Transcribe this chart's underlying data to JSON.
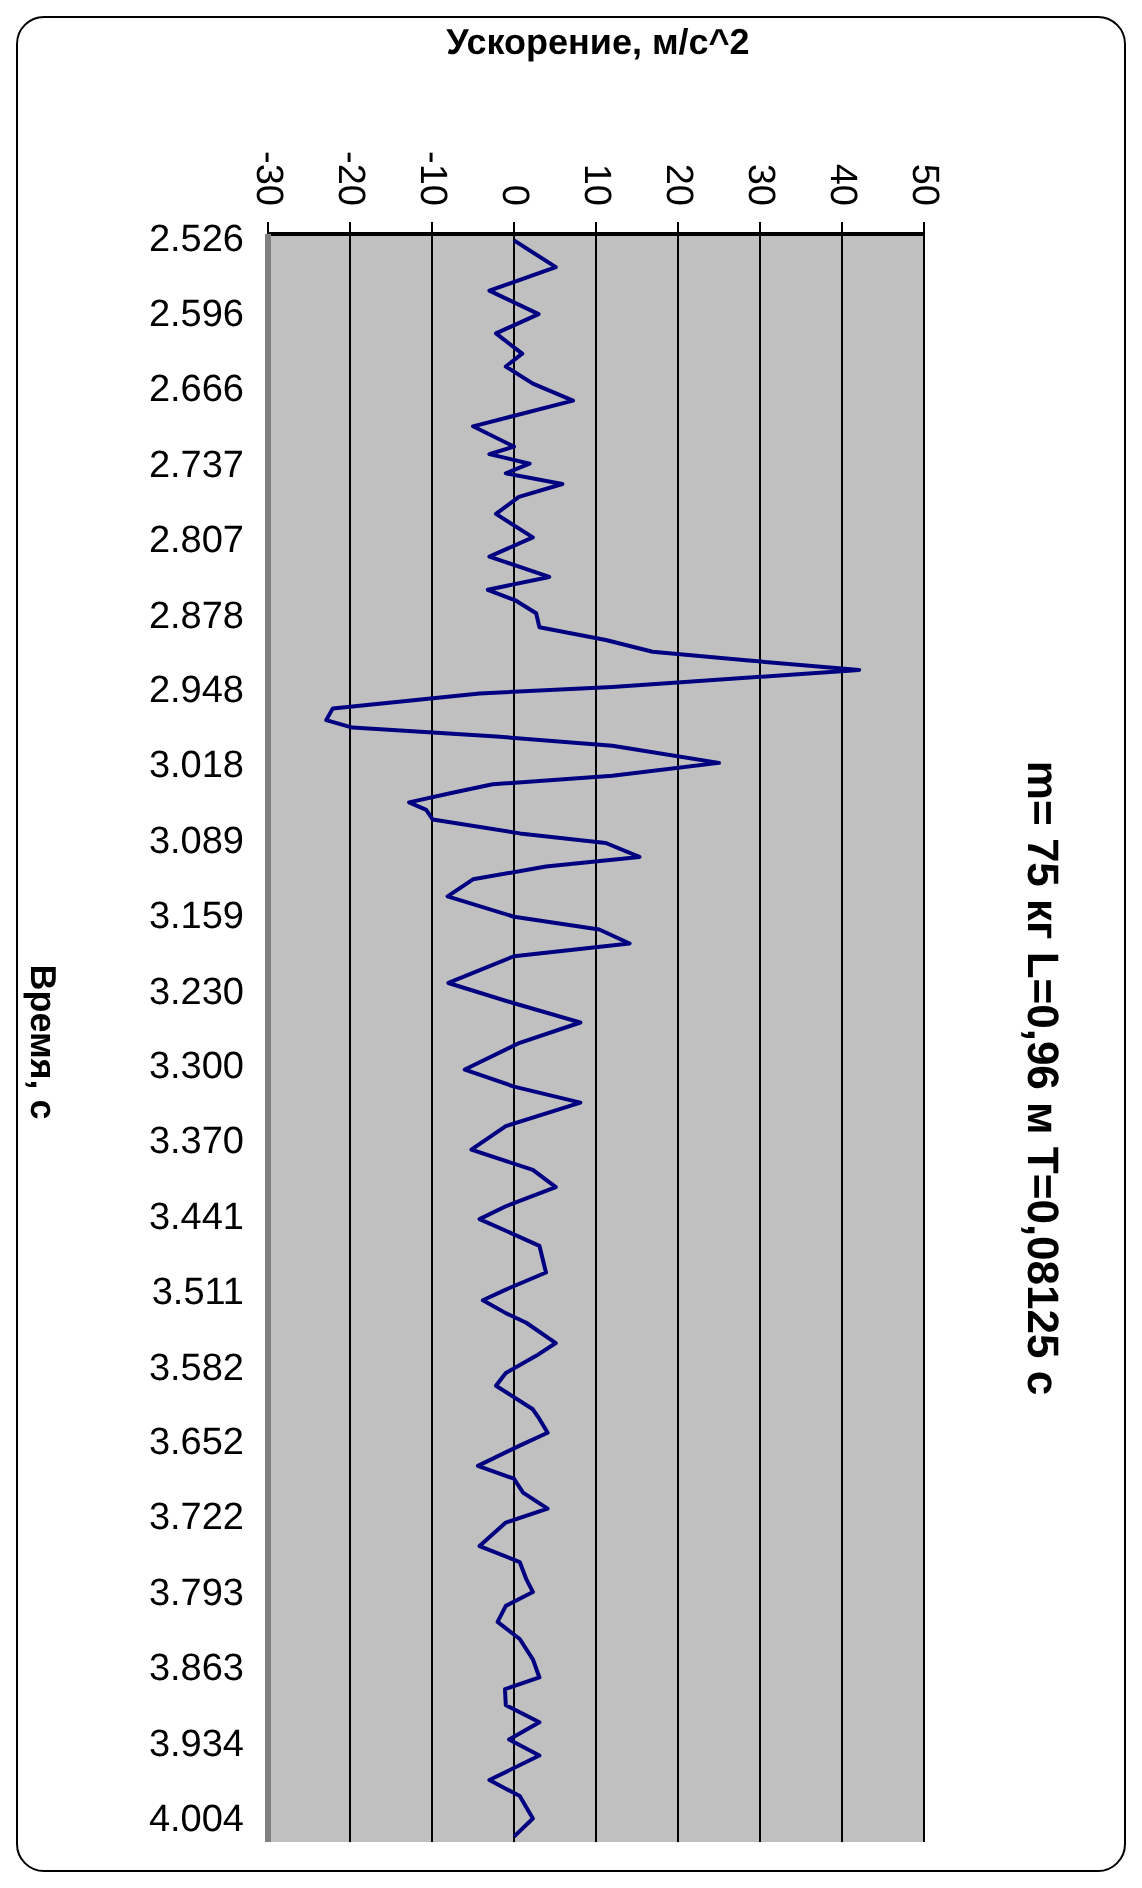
{
  "chart_data": {
    "type": "line",
    "title": "m= 75 кг L=0,96 м T=0,08125 с",
    "xlabel": "Ускорение, м/с^2",
    "ylabel": "Время, с",
    "orientation": "horizontal",
    "x": [
      2.526,
      2.551,
      2.573,
      2.595,
      2.613,
      2.632,
      2.644,
      2.66,
      2.676,
      2.7,
      2.719,
      2.726,
      2.735,
      2.744,
      2.754,
      2.766,
      2.782,
      2.804,
      2.822,
      2.841,
      2.853,
      2.863,
      2.875,
      2.888,
      2.9,
      2.911,
      2.919,
      2.928,
      2.944,
      2.95,
      2.964,
      2.975,
      2.982,
      2.99,
      2.999,
      3.015,
      3.027,
      3.035,
      3.043,
      3.052,
      3.059,
      3.068,
      3.081,
      3.09,
      3.103,
      3.112,
      3.124,
      3.14,
      3.159,
      3.171,
      3.184,
      3.196,
      3.221,
      3.24,
      3.258,
      3.277,
      3.302,
      3.318,
      3.333,
      3.355,
      3.377,
      3.396,
      3.412,
      3.43,
      3.442,
      3.467,
      3.492,
      3.508,
      3.518,
      3.53,
      3.539,
      3.558,
      3.57,
      3.586,
      3.598,
      3.62,
      3.629,
      3.642,
      3.654,
      3.673,
      3.685,
      3.698,
      3.713,
      3.726,
      3.748,
      3.763,
      3.779,
      3.791,
      3.804,
      3.819,
      3.835,
      3.854,
      3.871,
      3.882,
      3.897,
      3.913,
      3.929,
      3.944,
      3.967,
      3.982,
      4.003,
      4.02
    ],
    "series": [
      {
        "color": "#000080",
        "values": [
          0,
          5.1,
          -3,
          3,
          -2.2,
          1,
          -1,
          2.3,
          7.2,
          -5,
          0,
          -3,
          1.9,
          -1,
          5.9,
          0.6,
          -2.2,
          2.3,
          -3,
          4.3,
          -3.2,
          0.2,
          2.7,
          3.1,
          11.2,
          16.9,
          28.3,
          42.1,
          12,
          -4.2,
          -22.1,
          -22.9,
          -19.7,
          -2.6,
          12,
          25,
          12,
          -2.6,
          -7.5,
          -12.8,
          -10.7,
          -9.9,
          0.7,
          11.2,
          15.3,
          3.9,
          -5,
          -8.1,
          0,
          10.4,
          14.1,
          0,
          -8,
          0,
          8.1,
          0.7,
          -6,
          0,
          8.1,
          -1,
          -5.2,
          2.3,
          5.1,
          -1,
          -4.2,
          3.1,
          3.9,
          -1,
          -3.8,
          -1,
          1.5,
          5.1,
          2.7,
          -1,
          -2.2,
          2.3,
          3.1,
          4.1,
          0.7,
          -4.4,
          0,
          1.1,
          4.1,
          -1,
          -4.2,
          0.7,
          1.5,
          2.3,
          -1,
          -2,
          0.7,
          2.3,
          3.1,
          -1.1,
          -1,
          3.1,
          -0.6,
          3.1,
          -3,
          0.7,
          2.3,
          0
        ]
      }
    ],
    "xlim": [
      -30,
      50
    ],
    "xticks": [
      -30,
      -20,
      -10,
      0,
      10,
      20,
      30,
      40,
      50
    ],
    "ylim": [
      4.025,
      2.52
    ],
    "yticks": [
      2.526,
      2.596,
      2.666,
      2.737,
      2.807,
      2.878,
      2.948,
      3.018,
      3.089,
      3.159,
      {
        "value": 3.23,
        "label": "3.230"
      },
      {
        "value": 3.3,
        "label": "3.300"
      },
      {
        "value": 3.37,
        "label": "3.370"
      },
      3.441,
      3.511,
      3.582,
      3.652,
      3.722,
      3.793,
      3.863,
      3.934,
      4.004
    ],
    "grid": "x",
    "marker": "none",
    "line_style": "solid"
  }
}
